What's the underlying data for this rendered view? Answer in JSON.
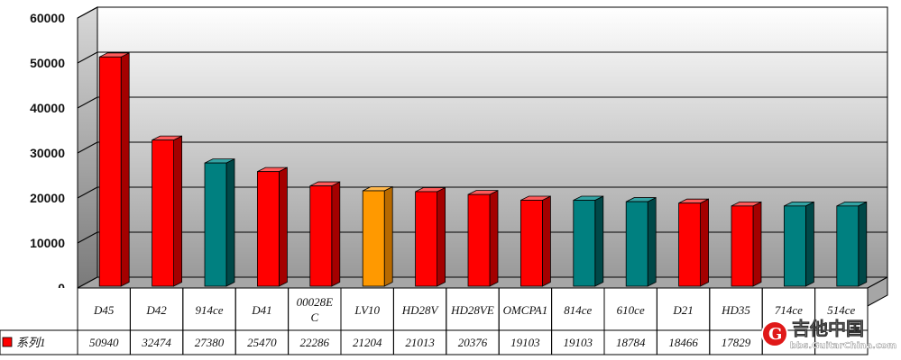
{
  "chart_data": {
    "type": "bar",
    "title": "",
    "xlabel": "",
    "ylabel": "",
    "ylim": [
      0,
      60000
    ],
    "yticks": [
      0,
      10000,
      20000,
      30000,
      40000,
      50000,
      60000
    ],
    "grid": true,
    "legend_position": "bottom-left",
    "categories": [
      "D45",
      "D42",
      "914ce",
      "D41",
      "00028EC",
      "LV10",
      "HD28V",
      "HD28VE",
      "OMCPA1",
      "814ce",
      "610ce",
      "D21",
      "HD35",
      "714ce",
      "514ce"
    ],
    "category_lines": [
      [
        "D45"
      ],
      [
        "D42"
      ],
      [
        "914ce"
      ],
      [
        "D41"
      ],
      [
        "00028E",
        "C"
      ],
      [
        "LV10"
      ],
      [
        "HD28V"
      ],
      [
        "HD28VE"
      ],
      [
        "OMCPA1"
      ],
      [
        "814ce"
      ],
      [
        "610ce"
      ],
      [
        "D21"
      ],
      [
        "HD35"
      ],
      [
        "714ce"
      ],
      [
        "514ce"
      ]
    ],
    "series": [
      {
        "name": "系列1",
        "values": [
          50940,
          32474,
          27380,
          25470,
          22286,
          21204,
          21013,
          20376,
          19103,
          19103,
          18784,
          18466,
          17829,
          17829,
          17829
        ],
        "value_labels": [
          "50940",
          "32474",
          "27380",
          "25470",
          "22286",
          "21204",
          "21013",
          "20376",
          "19103",
          "19103",
          "18784",
          "18466",
          "17829",
          "",
          ""
        ]
      }
    ],
    "bar_colors": [
      "red",
      "red",
      "teal",
      "red",
      "red",
      "orange",
      "red",
      "red",
      "red",
      "teal",
      "teal",
      "red",
      "red",
      "teal",
      "teal"
    ],
    "palette": {
      "red": {
        "front": "#ff0000",
        "side": "#a40000",
        "top": "#ff5a5a"
      },
      "teal": {
        "front": "#008080",
        "side": "#004848",
        "top": "#33a3a3"
      },
      "orange": {
        "front": "#ff9900",
        "side": "#b86a00",
        "top": "#ffb84d"
      }
    }
  },
  "watermark": {
    "text": "吉他中国",
    "url": "bbs.GuitarChina.com"
  }
}
